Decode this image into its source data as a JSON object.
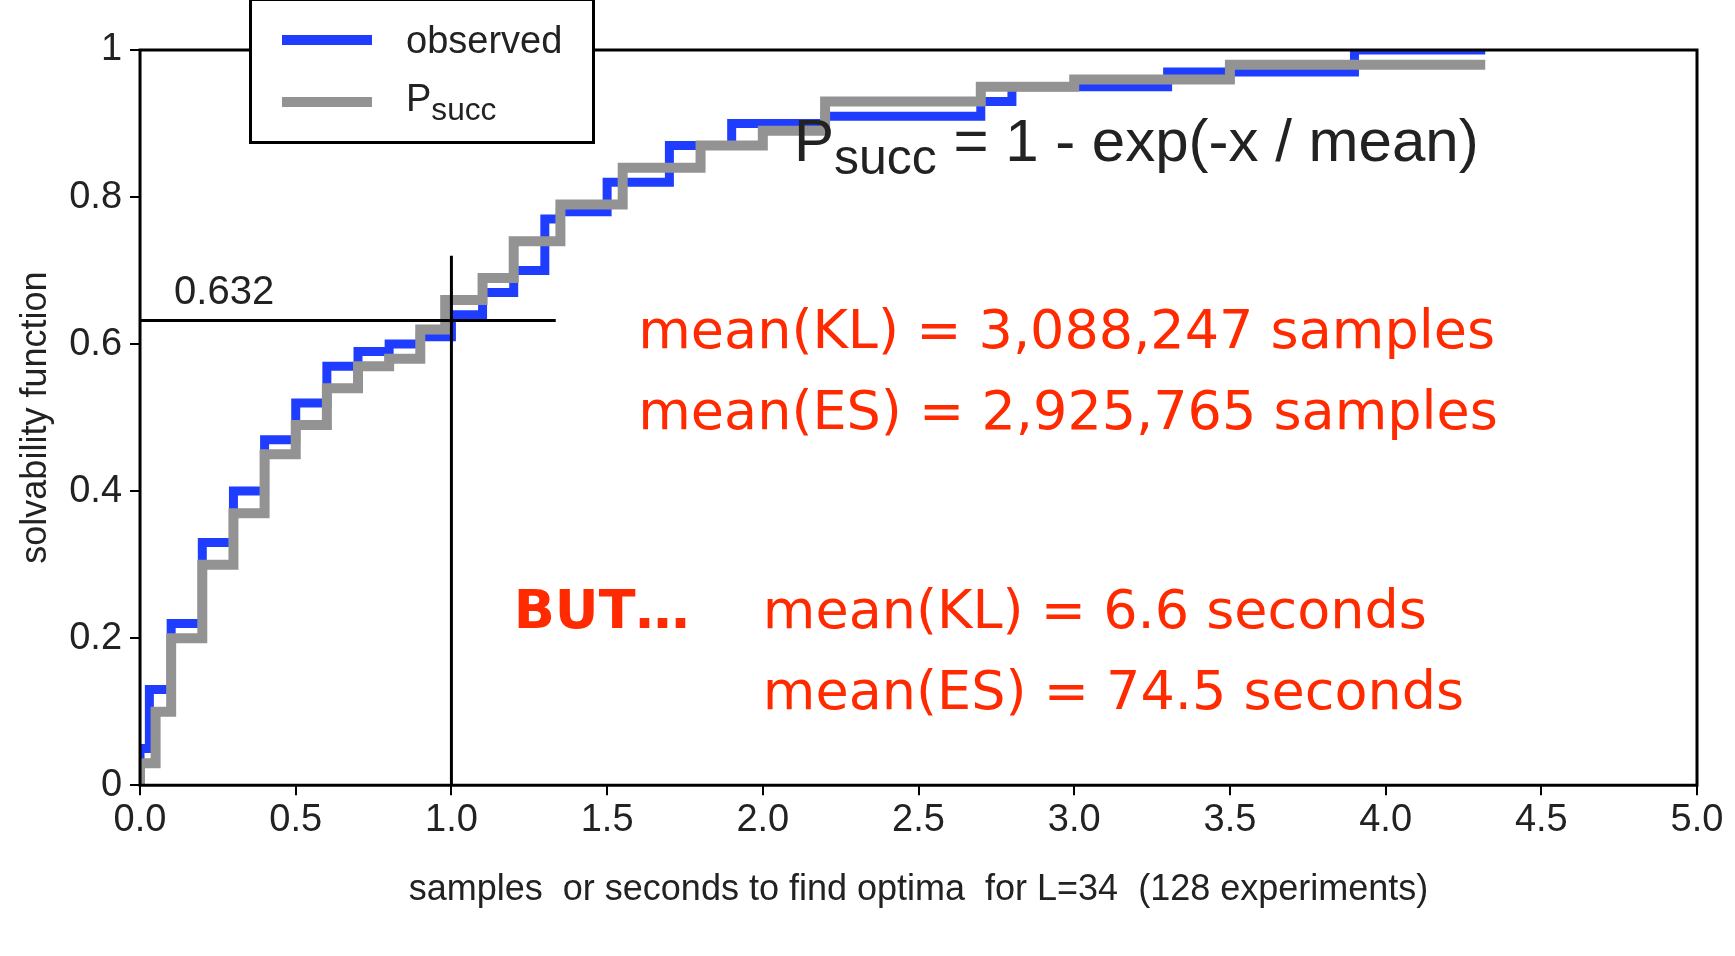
{
  "chart_data": {
    "type": "step",
    "xlabel": "samples  or seconds to find optima  for L=34  (128 experiments)",
    "ylabel": "solvability function",
    "xlim": [
      0,
      5
    ],
    "ylim": [
      0,
      1
    ],
    "xticks": [
      {
        "value": 0,
        "label": "0.0"
      },
      {
        "value": 0.5,
        "label": "0.5"
      },
      {
        "value": 1,
        "label": "1.0"
      },
      {
        "value": 1.5,
        "label": "1.5"
      },
      {
        "value": 2,
        "label": "2.0"
      },
      {
        "value": 2.5,
        "label": "2.5"
      },
      {
        "value": 3,
        "label": "3.0"
      },
      {
        "value": 3.5,
        "label": "3.5"
      },
      {
        "value": 4,
        "label": "4.0"
      },
      {
        "value": 4.5,
        "label": "4.5"
      },
      {
        "value": 5,
        "label": "5.0"
      }
    ],
    "yticks": [
      0,
      0.2,
      0.4,
      0.6,
      0.8,
      1
    ],
    "grid": false,
    "legend": "top left",
    "series": [
      {
        "name": "observed",
        "color": "#1f3dff",
        "x": [
          0,
          0.03,
          0.1,
          0.2,
          0.3,
          0.4,
          0.5,
          0.6,
          0.7,
          0.8,
          0.9,
          1.0,
          1.1,
          1.2,
          1.3,
          1.35,
          1.5,
          1.7,
          1.9,
          2.2,
          2.7,
          2.8,
          3.3,
          3.9,
          4.1,
          4.32
        ],
        "values": [
          0,
          0.05,
          0.13,
          0.22,
          0.33,
          0.4,
          0.47,
          0.52,
          0.57,
          0.59,
          0.6,
          0.61,
          0.64,
          0.67,
          0.7,
          0.77,
          0.78,
          0.82,
          0.87,
          0.9,
          0.91,
          0.93,
          0.95,
          0.97,
          1.0,
          1.0
        ]
      },
      {
        "name": "P$_{succ}$",
        "color": "#939393",
        "x": [
          0,
          0.05,
          0.1,
          0.2,
          0.3,
          0.4,
          0.5,
          0.6,
          0.7,
          0.8,
          0.9,
          0.98,
          1.1,
          1.2,
          1.35,
          1.55,
          1.8,
          2.0,
          2.2,
          2.7,
          3.0,
          3.5,
          3.9,
          4.32
        ],
        "values": [
          0,
          0.03,
          0.1,
          0.2,
          0.3,
          0.37,
          0.45,
          0.49,
          0.54,
          0.57,
          0.58,
          0.62,
          0.66,
          0.69,
          0.74,
          0.79,
          0.84,
          0.87,
          0.89,
          0.93,
          0.95,
          0.96,
          0.98,
          0.98
        ]
      }
    ],
    "ref_lines": [
      {
        "axis": "y",
        "value": 0.632,
        "label": "0.632",
        "color": "#000000"
      },
      {
        "axis": "x",
        "value": 1,
        "color": "#000000"
      }
    ],
    "annotations": [
      "P$_{succ}$ = 1 - exp(-x / mean)",
      "mean(KL) = 3,088,247 samples",
      "mean(ES) = 2,925,765 samples",
      "BUT…",
      "mean(KL) = 6.6 seconds",
      "mean(ES) = 74.5 seconds"
    ]
  }
}
